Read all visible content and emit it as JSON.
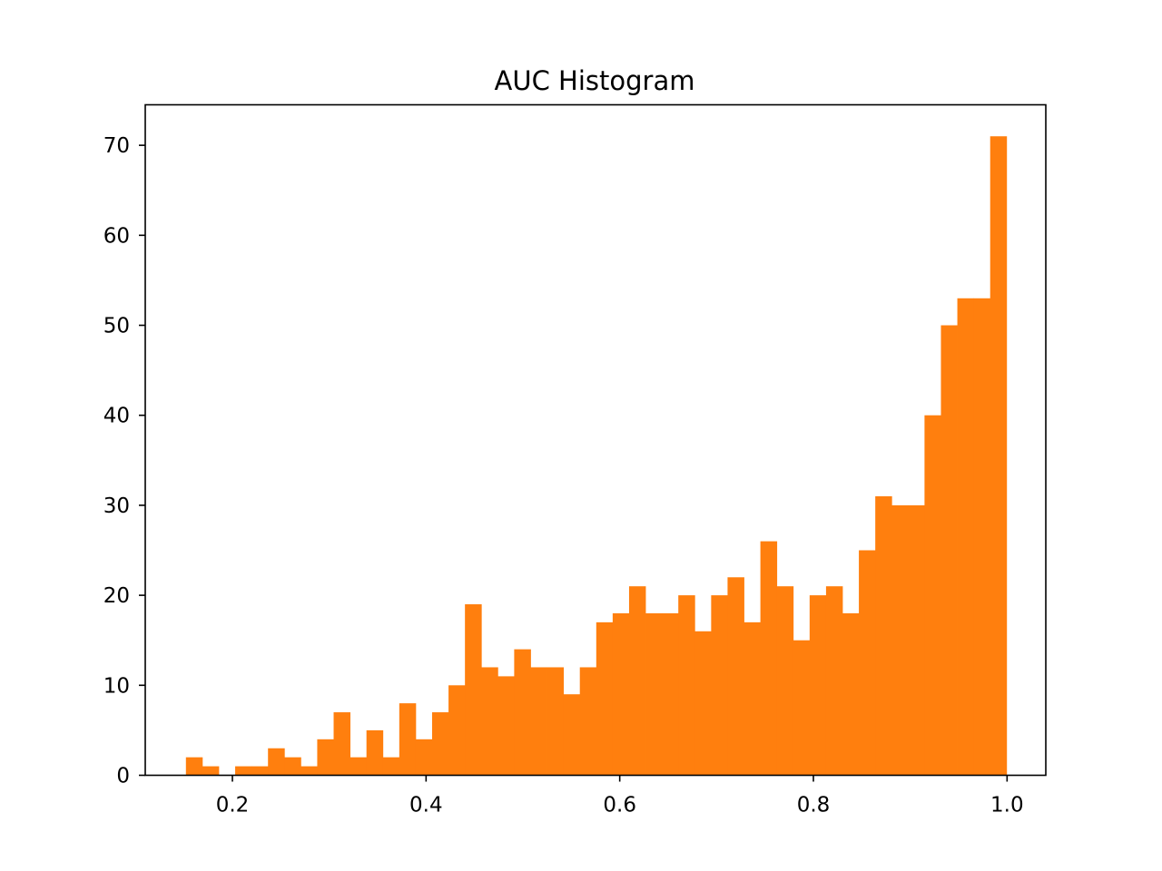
{
  "chart_data": {
    "type": "bar",
    "title": "AUC Histogram",
    "xlabel": "",
    "ylabel": "",
    "bin_start": 0.152,
    "bin_end": 0.9995,
    "counts": [
      2,
      1,
      0,
      1,
      1,
      3,
      2,
      1,
      4,
      7,
      2,
      5,
      2,
      8,
      4,
      7,
      10,
      19,
      12,
      11,
      14,
      12,
      12,
      9,
      12,
      17,
      18,
      21,
      18,
      18,
      20,
      16,
      20,
      22,
      17,
      26,
      21,
      15,
      20,
      21,
      18,
      25,
      31,
      30,
      30,
      40,
      50,
      53,
      53,
      71
    ],
    "xlim": [
      0.11,
      1.04
    ],
    "ylim": [
      0,
      74.5
    ],
    "xticks": [
      0.2,
      0.4,
      0.6,
      0.8,
      1.0
    ],
    "xtick_labels": [
      "0.2",
      "0.4",
      "0.6",
      "0.8",
      "1.0"
    ],
    "yticks": [
      0,
      10,
      20,
      30,
      40,
      50,
      60,
      70
    ],
    "ytick_labels": [
      "0",
      "10",
      "20",
      "30",
      "40",
      "50",
      "60",
      "70"
    ],
    "bar_color": "#ff7f0e",
    "grid": false,
    "legend": "none"
  }
}
